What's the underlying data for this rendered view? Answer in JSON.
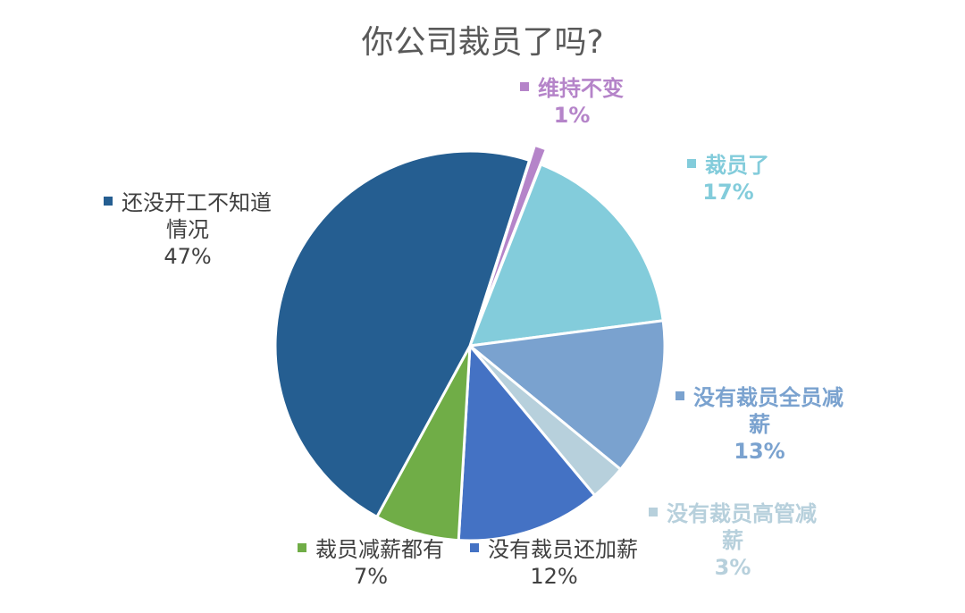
{
  "chart_data": {
    "type": "pie",
    "title": "你公司裁员了吗?",
    "slices": [
      {
        "label_lines": [
          "维持不变"
        ],
        "value": 1,
        "pct": "1%",
        "color": "#b584c9",
        "exploded": true,
        "bold": true
      },
      {
        "label_lines": [
          "裁员了"
        ],
        "value": 17,
        "pct": "17%",
        "color": "#83ccdb",
        "bold": true
      },
      {
        "label_lines": [
          "没有裁员全员减",
          "薪"
        ],
        "value": 13,
        "pct": "13%",
        "color": "#7aa2cf",
        "bold": true
      },
      {
        "label_lines": [
          "没有裁员高管减",
          "薪"
        ],
        "value": 3,
        "pct": "3%",
        "color": "#b7d0dc",
        "bold": true
      },
      {
        "label_lines": [
          "没有裁员还加薪"
        ],
        "value": 12,
        "pct": "12%",
        "color": "#4472c4",
        "bold": false
      },
      {
        "label_lines": [
          "裁员减薪都有"
        ],
        "value": 7,
        "pct": "7%",
        "color": "#70ad47",
        "bold": false
      },
      {
        "label_lines": [
          "还没开工不知道",
          "情况"
        ],
        "value": 47,
        "pct": "47%",
        "color": "#255e91",
        "bold": false
      }
    ]
  }
}
